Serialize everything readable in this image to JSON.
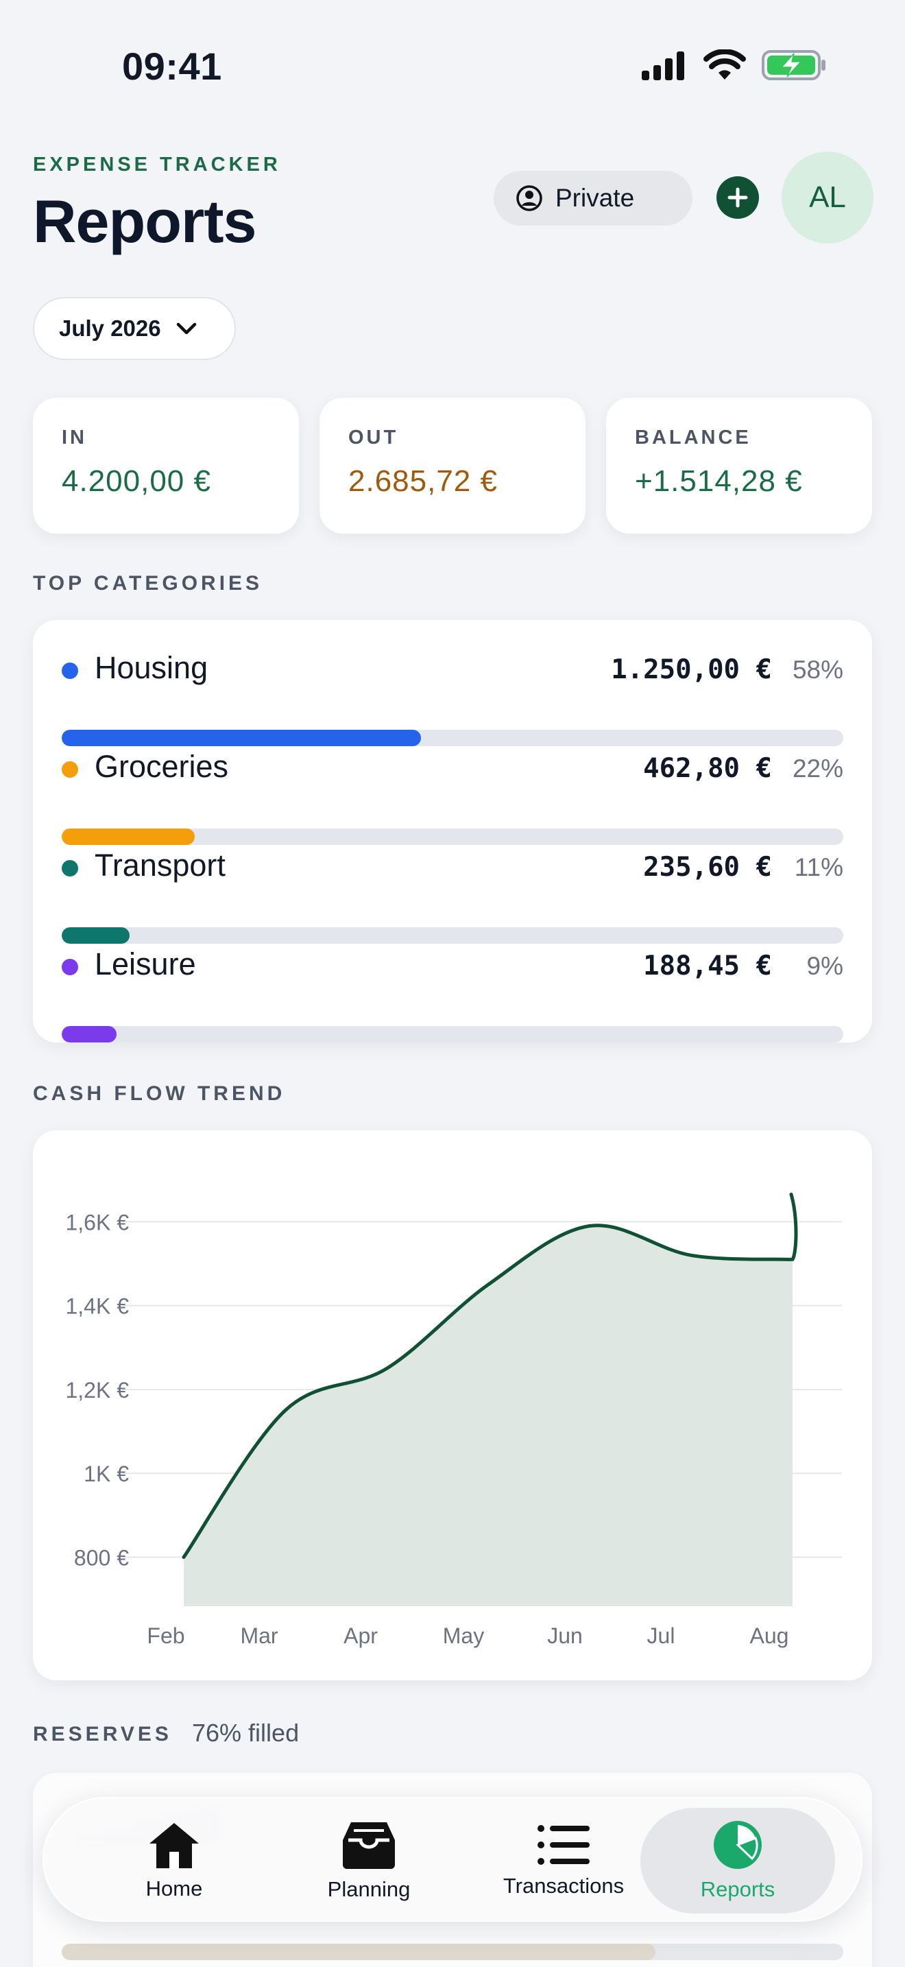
{
  "status_bar": {
    "time": "09:41"
  },
  "header": {
    "eyebrow": "EXPENSE TRACKER",
    "title": "Reports",
    "privacy_label": "Private",
    "avatar_initials": "AL"
  },
  "period": {
    "selected": "July 2026"
  },
  "summary": {
    "in": {
      "label": "IN",
      "value": "4.200,00 €",
      "color": "#1b6b46"
    },
    "out": {
      "label": "OUT",
      "value": "2.685,72 €",
      "color": "#a05a0c"
    },
    "balance": {
      "label": "BALANCE",
      "value": "+1.514,28 €",
      "color": "#1b6b46"
    }
  },
  "top_categories": {
    "title": "TOP CATEGORIES",
    "items": [
      {
        "name": "Housing",
        "amount": "1.250,00 €",
        "percent": "58%",
        "fill": 0.46,
        "color": "#2563eb"
      },
      {
        "name": "Groceries",
        "amount": "462,80 €",
        "percent": "22%",
        "fill": 0.17,
        "color": "#f59e0b"
      },
      {
        "name": "Transport",
        "amount": "235,60 €",
        "percent": "11%",
        "fill": 0.087,
        "color": "#0f766e"
      },
      {
        "name": "Leisure",
        "amount": "188,45 €",
        "percent": "9%",
        "fill": 0.07,
        "color": "#7c3aed"
      }
    ]
  },
  "cash_flow": {
    "title": "CASH FLOW TREND"
  },
  "chart_data": {
    "type": "area",
    "title": "",
    "xlabel": "",
    "ylabel": "",
    "categories": [
      "Feb",
      "Mar",
      "Apr",
      "May",
      "Jun",
      "Jul",
      "Aug"
    ],
    "values": [
      800,
      1150,
      1250,
      1450,
      1590,
      1520,
      1510
    ],
    "y_ticks": [
      800,
      1000,
      1200,
      1400,
      1600
    ],
    "y_tick_labels": [
      "800 €",
      "1K €",
      "1,2K €",
      "1,4K €",
      "1,6K €"
    ],
    "ylim": [
      670,
      1720
    ],
    "grid": true,
    "line_color": "#0f5132",
    "fill_color": "#dfe7e3"
  },
  "reserves": {
    "title": "RESERVES",
    "filled_label": "76% filled",
    "fill": 0.76
  },
  "tab_bar": {
    "tabs": [
      {
        "label": "Home",
        "icon": "home-icon"
      },
      {
        "label": "Planning",
        "icon": "inbox-icon"
      },
      {
        "label": "Transactions",
        "icon": "list-icon"
      },
      {
        "label": "Reports",
        "icon": "pie-chart-icon",
        "active": true
      }
    ]
  }
}
